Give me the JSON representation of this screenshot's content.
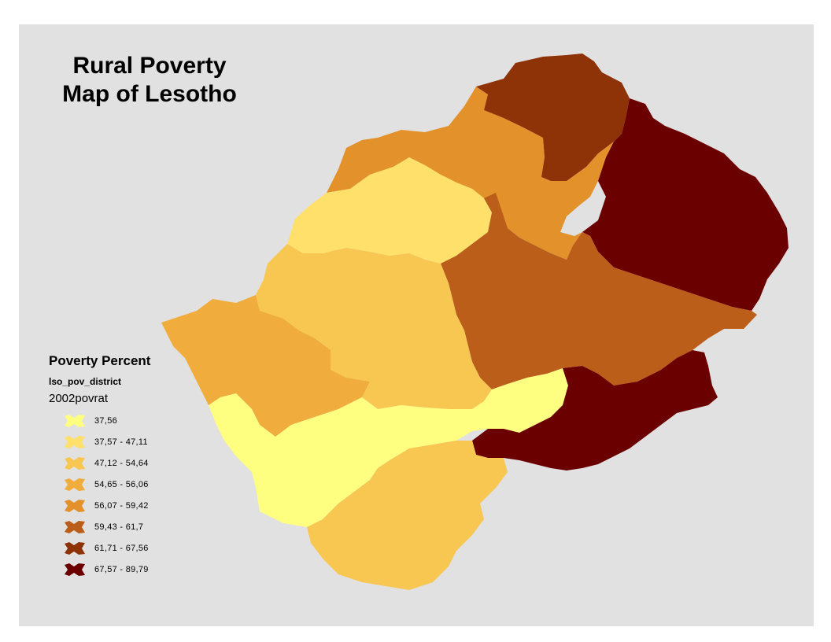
{
  "title_line1": "Rural Poverty",
  "title_line2": "Map of Lesotho",
  "legend": {
    "heading": "Poverty Percent",
    "layer": "lso_pov_district",
    "field": "2002povrat",
    "classes": [
      {
        "label": "37,56",
        "color": "#fefe80"
      },
      {
        "label": "37,57 - 47,11",
        "color": "#fee06a"
      },
      {
        "label": "47,12 - 54,64",
        "color": "#f8c752"
      },
      {
        "label": "54,65 - 56,06",
        "color": "#f0ac3c"
      },
      {
        "label": "56,07 - 59,42",
        "color": "#e2912b"
      },
      {
        "label": "59,43 - 61,7",
        "color": "#ba5e1a"
      },
      {
        "label": "61,71 - 67,56",
        "color": "#8e3208"
      },
      {
        "label": "67,57 - 89,79",
        "color": "#6b0000"
      }
    ]
  },
  "colors": {
    "background": "#e1e1e1"
  }
}
